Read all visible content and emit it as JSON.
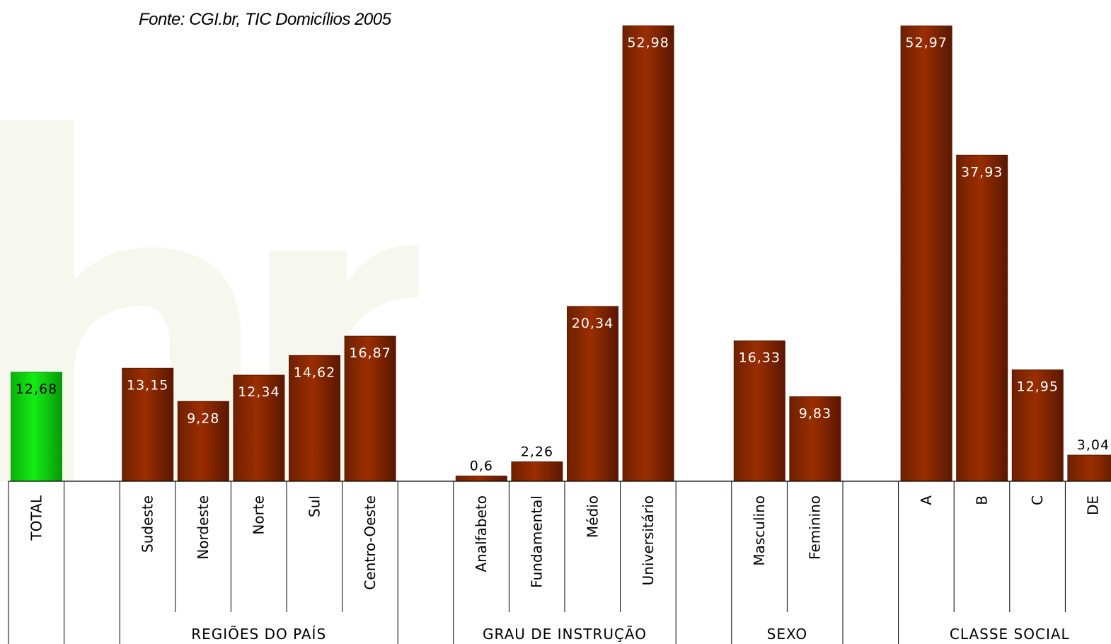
{
  "source_note": "Fonte: CGI.br, TIC Domicílios 2005",
  "colors": {
    "bar": "#9a2e00",
    "bar_edge": "#5a1800",
    "total_bar": "#10e010",
    "total_bar_edge": "#08a008",
    "watermark": "#f6f7ee",
    "grid": "#000000"
  },
  "chart_data": {
    "type": "bar",
    "ylim": [
      0,
      55
    ],
    "grid": false,
    "legend": "none",
    "categories": [
      "TOTAL",
      "",
      "Sudeste",
      "Nordeste",
      "Norte",
      "Sul",
      "Centro-Oeste",
      "",
      "Analfabeto",
      "Fundamental",
      "Médio",
      "Universitário",
      "",
      "Masculino",
      "Feminino",
      "",
      "A",
      "B",
      "C",
      "DE"
    ],
    "values": [
      12.68,
      null,
      13.15,
      9.28,
      12.34,
      14.62,
      16.87,
      null,
      0.6,
      2.26,
      20.34,
      52.98,
      null,
      16.33,
      9.83,
      null,
      52.97,
      37.93,
      12.95,
      3.04
    ],
    "value_labels": [
      "12,68",
      "",
      "13,15",
      "9,28",
      "12,34",
      "14,62",
      "16,87",
      "",
      "0,6",
      "2,26",
      "20,34",
      "52,98",
      "",
      "16,33",
      "9,83",
      "",
      "52,97",
      "37,93",
      "12,95",
      "3,04"
    ],
    "highlight_index": 0,
    "groups": [
      {
        "label": "REGIÕES DO PAÍS",
        "from": 2,
        "to": 6
      },
      {
        "label": "GRAU DE INSTRUÇÃO",
        "from": 8,
        "to": 11
      },
      {
        "label": "SEXO",
        "from": 13,
        "to": 14
      },
      {
        "label": "CLASSE  SOCIAL",
        "from": 16,
        "to": 19
      }
    ]
  }
}
